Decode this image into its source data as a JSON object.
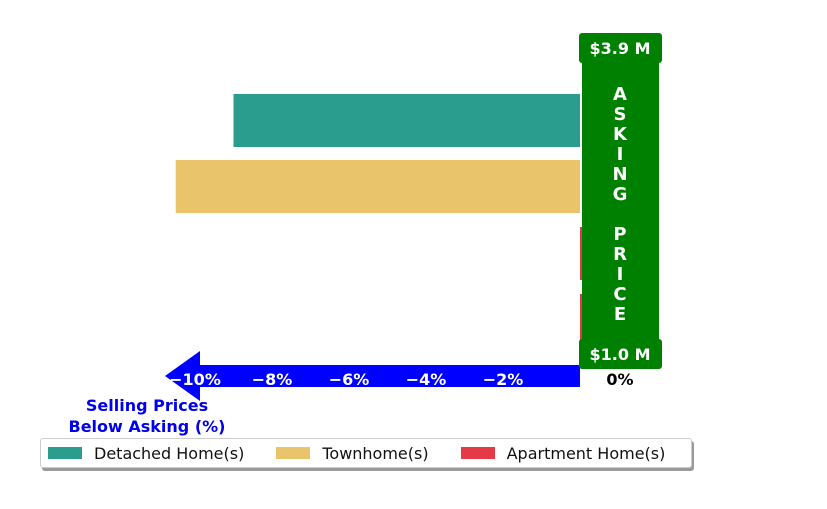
{
  "chart_data": {
    "type": "bar",
    "orientation": "horizontal",
    "categories": [
      "Detached Home(s)",
      "Townhome(s)",
      "Apartment Home(s)",
      "Apartment Home(s)"
    ],
    "values": [
      -9.0,
      -10.5,
      0.2,
      0.2
    ],
    "colors": [
      "#2a9d8f",
      "#e9c46a",
      "#e63946",
      "#e63946"
    ],
    "xlim": [
      -11,
      2
    ],
    "x_ticks": [
      -10,
      -8,
      -6,
      -4,
      -2,
      0
    ],
    "x_tick_labels": [
      "−10%",
      "−8%",
      "−6%",
      "−4%",
      "−2%",
      "0%"
    ],
    "xlabel": "Selling Prices\nBelow Asking (%)",
    "legend": {
      "placement": "bottom",
      "entries": [
        {
          "label": "Detached Home(s)",
          "color": "#2a9d8f"
        },
        {
          "label": "Townhome(s)",
          "color": "#e9c46a"
        },
        {
          "label": "Apartment Home(s)",
          "color": "#e63946"
        }
      ]
    },
    "annotations": {
      "asking_price_label": "ASKING PRICE",
      "top_price_label": "$3.9 M",
      "bottom_price_label": "$1.0 M",
      "banner_color": "#008000",
      "arrow_color": "#0000ff",
      "xlabel_color": "#0000ee"
    },
    "grid": false
  }
}
